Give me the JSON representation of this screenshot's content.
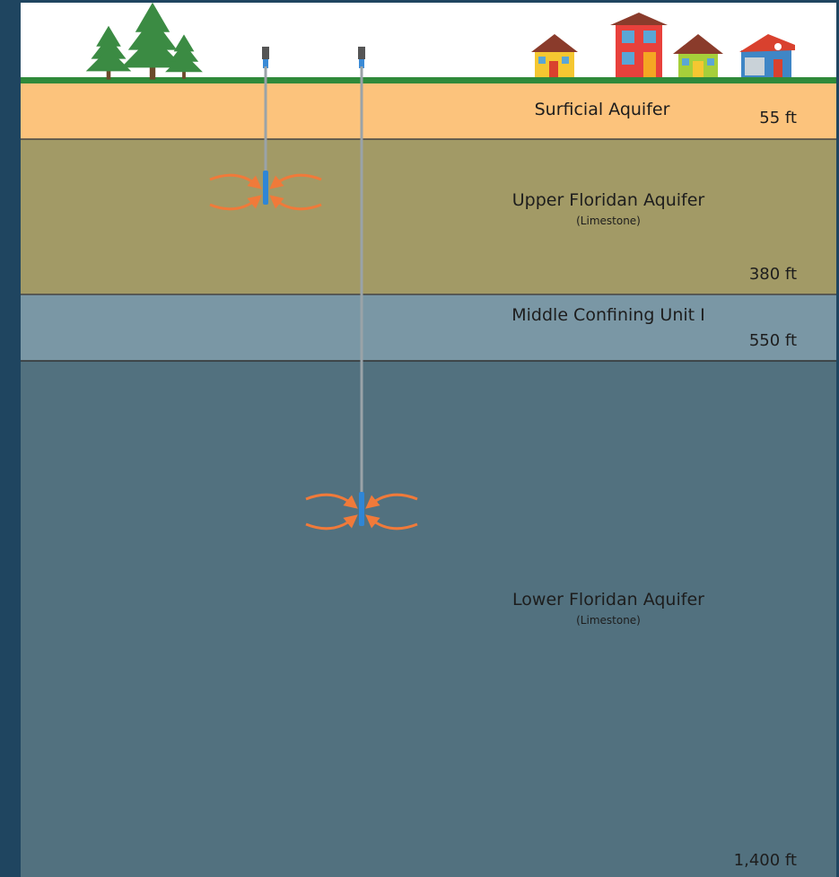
{
  "layers": [
    {
      "name": "Surficial Aquifer",
      "depth": "55 ft"
    },
    {
      "name": "Upper Floridan Aquifer",
      "note": "(Limestone)",
      "depth": "380 ft"
    },
    {
      "name": "Middle Confining Unit I",
      "depth": "550 ft"
    },
    {
      "name": "Lower Floridan Aquifer",
      "note": "(Limestone)",
      "depth": "1,400 ft"
    }
  ]
}
